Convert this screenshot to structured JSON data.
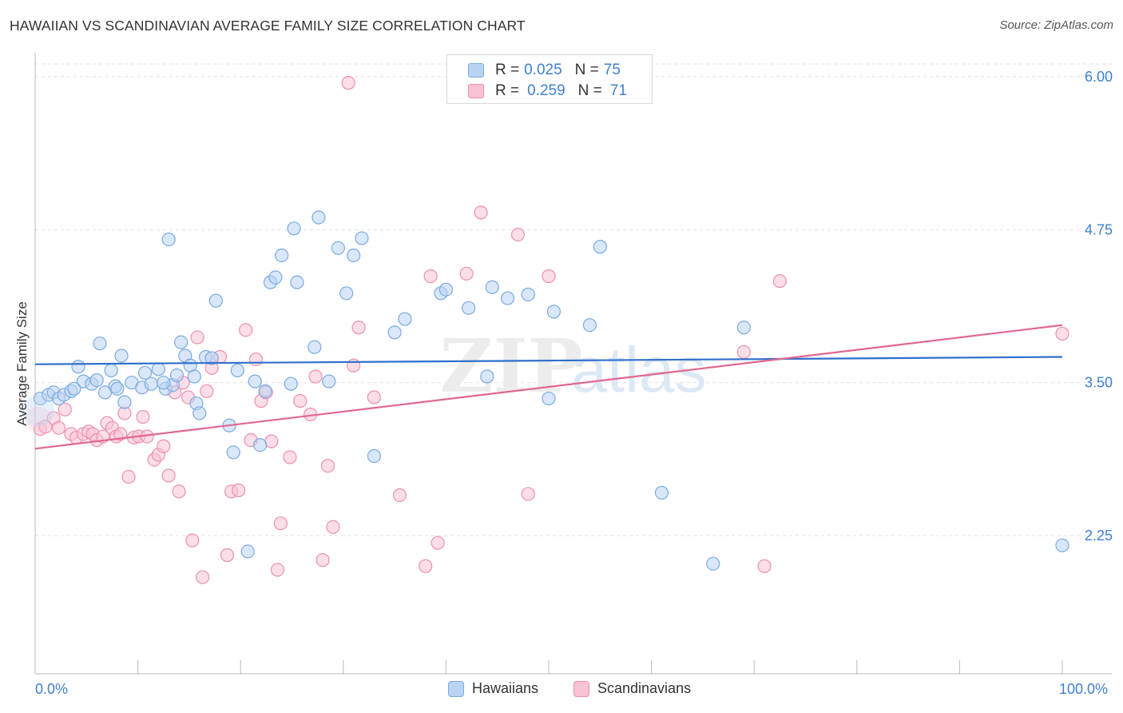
{
  "header": {
    "title": "HAWAIIAN VS SCANDINAVIAN AVERAGE FAMILY SIZE CORRELATION CHART",
    "source": "Source: ZipAtlas.com"
  },
  "legend": {
    "rows": [
      {
        "r_label": "R =",
        "r_value": "0.025",
        "n_label": "N =",
        "n_value": "75"
      },
      {
        "r_label": "R =",
        "r_value": "0.259",
        "n_label": "N =",
        "n_value": "71"
      }
    ]
  },
  "bottom_legend": {
    "hawaiians": "Hawaiians",
    "scandinavians": "Scandinavians"
  },
  "watermark": {
    "zip": "ZIP",
    "atlas": "atlas"
  },
  "colors": {
    "blue_fill": "#b9d3f2",
    "blue_stroke": "#7aaae0",
    "blue_line": "#2f6fcc",
    "pink_fill": "#f8c3d3",
    "pink_stroke": "#ee8fb0",
    "pink_line": "#e2678f",
    "axis_text": "#3f7fd0",
    "grid": "#e2e2e2"
  },
  "chart_data": {
    "type": "scatter",
    "title": "HAWAIIAN VS SCANDINAVIAN AVERAGE FAMILY SIZE CORRELATION CHART",
    "xlabel": "",
    "ylabel": "Average Family Size",
    "xlim": [
      0,
      100
    ],
    "ylim": [
      1.2,
      6.1
    ],
    "x_tick_labels": [
      "0.0%",
      "100.0%"
    ],
    "y_ticks": [
      2.25,
      3.5,
      4.75,
      6.0
    ],
    "y_tick_labels": [
      "2.25",
      "3.50",
      "4.75",
      "6.00"
    ],
    "grid": true,
    "legend_position": "top-center",
    "series": [
      {
        "name": "Hawaiians",
        "color": "#b9d3f2",
        "trend": {
          "x": [
            0,
            100
          ],
          "y": [
            3.65,
            3.71
          ]
        },
        "points": [
          [
            0.5,
            3.37
          ],
          [
            1.3,
            3.4
          ],
          [
            1.8,
            3.42
          ],
          [
            2.3,
            3.37
          ],
          [
            2.8,
            3.4
          ],
          [
            3.5,
            3.43
          ],
          [
            4.2,
            3.63
          ],
          [
            4.7,
            3.51
          ],
          [
            5.5,
            3.49
          ],
          [
            6.0,
            3.52
          ],
          [
            6.3,
            3.82
          ],
          [
            6.8,
            3.42
          ],
          [
            7.4,
            3.6
          ],
          [
            7.8,
            3.47
          ],
          [
            8.4,
            3.72
          ],
          [
            8.7,
            3.34
          ],
          [
            9.4,
            3.5
          ],
          [
            10.4,
            3.46
          ],
          [
            10.7,
            3.58
          ],
          [
            11.3,
            3.49
          ],
          [
            12.0,
            3.61
          ],
          [
            12.7,
            3.45
          ],
          [
            13.0,
            4.67
          ],
          [
            13.4,
            3.48
          ],
          [
            13.8,
            3.56
          ],
          [
            14.2,
            3.83
          ],
          [
            14.6,
            3.72
          ],
          [
            15.1,
            3.64
          ],
          [
            15.7,
            3.33
          ],
          [
            16.0,
            3.25
          ],
          [
            16.6,
            3.71
          ],
          [
            17.2,
            3.7
          ],
          [
            17.6,
            4.17
          ],
          [
            18.9,
            3.15
          ],
          [
            19.3,
            2.93
          ],
          [
            19.7,
            3.6
          ],
          [
            20.7,
            2.12
          ],
          [
            21.4,
            3.51
          ],
          [
            21.9,
            2.99
          ],
          [
            22.4,
            3.43
          ],
          [
            22.9,
            4.32
          ],
          [
            23.4,
            4.36
          ],
          [
            24.0,
            4.54
          ],
          [
            24.9,
            3.49
          ],
          [
            25.5,
            4.32
          ],
          [
            27.2,
            3.79
          ],
          [
            27.6,
            4.85
          ],
          [
            28.6,
            3.51
          ],
          [
            29.5,
            4.6
          ],
          [
            30.3,
            4.23
          ],
          [
            31.0,
            4.54
          ],
          [
            31.8,
            4.68
          ],
          [
            33.0,
            2.9
          ],
          [
            35.0,
            3.91
          ],
          [
            36.0,
            4.02
          ],
          [
            39.5,
            4.23
          ],
          [
            40.0,
            4.26
          ],
          [
            42.2,
            4.11
          ],
          [
            44.0,
            3.55
          ],
          [
            44.5,
            4.28
          ],
          [
            46.0,
            4.19
          ],
          [
            48.0,
            4.22
          ],
          [
            50.0,
            3.37
          ],
          [
            50.5,
            4.08
          ],
          [
            54.0,
            3.97
          ],
          [
            55.0,
            4.61
          ],
          [
            61.0,
            2.6
          ],
          [
            66.0,
            2.02
          ],
          [
            69.0,
            3.95
          ],
          [
            100.0,
            2.17
          ],
          [
            25.2,
            4.76
          ],
          [
            12.5,
            3.5
          ],
          [
            8.0,
            3.45
          ],
          [
            15.5,
            3.55
          ],
          [
            3.8,
            3.45
          ]
        ]
      },
      {
        "name": "Scandinavians",
        "color": "#f8c3d3",
        "trend": {
          "x": [
            0,
            100
          ],
          "y": [
            2.96,
            3.97
          ]
        },
        "points": [
          [
            0.5,
            3.12
          ],
          [
            1.0,
            3.14
          ],
          [
            1.8,
            3.21
          ],
          [
            2.3,
            3.13
          ],
          [
            2.9,
            3.28
          ],
          [
            3.5,
            3.08
          ],
          [
            4.0,
            3.05
          ],
          [
            4.7,
            3.08
          ],
          [
            5.2,
            3.1
          ],
          [
            5.6,
            3.08
          ],
          [
            6.0,
            3.03
          ],
          [
            6.6,
            3.06
          ],
          [
            7.0,
            3.17
          ],
          [
            7.5,
            3.13
          ],
          [
            7.9,
            3.06
          ],
          [
            8.3,
            3.08
          ],
          [
            8.7,
            3.25
          ],
          [
            9.1,
            2.73
          ],
          [
            9.6,
            3.05
          ],
          [
            10.1,
            3.06
          ],
          [
            10.5,
            3.22
          ],
          [
            10.9,
            3.06
          ],
          [
            11.6,
            2.87
          ],
          [
            12.0,
            2.91
          ],
          [
            12.5,
            2.98
          ],
          [
            13.0,
            2.74
          ],
          [
            13.6,
            3.42
          ],
          [
            14.0,
            2.61
          ],
          [
            14.4,
            3.5
          ],
          [
            14.9,
            3.38
          ],
          [
            15.3,
            2.21
          ],
          [
            15.8,
            3.87
          ],
          [
            16.3,
            1.91
          ],
          [
            16.7,
            3.43
          ],
          [
            17.2,
            3.62
          ],
          [
            18.0,
            3.71
          ],
          [
            18.7,
            2.09
          ],
          [
            19.1,
            2.61
          ],
          [
            19.8,
            2.62
          ],
          [
            20.5,
            3.93
          ],
          [
            21.0,
            3.03
          ],
          [
            21.5,
            3.69
          ],
          [
            22.0,
            3.35
          ],
          [
            23.0,
            3.02
          ],
          [
            23.6,
            1.97
          ],
          [
            23.9,
            2.35
          ],
          [
            24.8,
            2.89
          ],
          [
            25.8,
            3.35
          ],
          [
            26.8,
            3.24
          ],
          [
            27.3,
            3.55
          ],
          [
            28.0,
            2.05
          ],
          [
            28.5,
            2.82
          ],
          [
            29.0,
            2.32
          ],
          [
            31.5,
            3.95
          ],
          [
            31.0,
            3.64
          ],
          [
            33.0,
            3.38
          ],
          [
            35.5,
            2.58
          ],
          [
            38.0,
            2.0
          ],
          [
            38.5,
            4.37
          ],
          [
            39.2,
            2.19
          ],
          [
            42.0,
            4.39
          ],
          [
            43.4,
            4.89
          ],
          [
            47.0,
            4.71
          ],
          [
            48.0,
            2.59
          ],
          [
            50.0,
            4.37
          ],
          [
            69.0,
            3.75
          ],
          [
            71.0,
            2.0
          ],
          [
            72.5,
            4.33
          ],
          [
            100.0,
            3.9
          ],
          [
            30.5,
            5.95
          ],
          [
            22.5,
            3.42
          ]
        ]
      }
    ]
  }
}
